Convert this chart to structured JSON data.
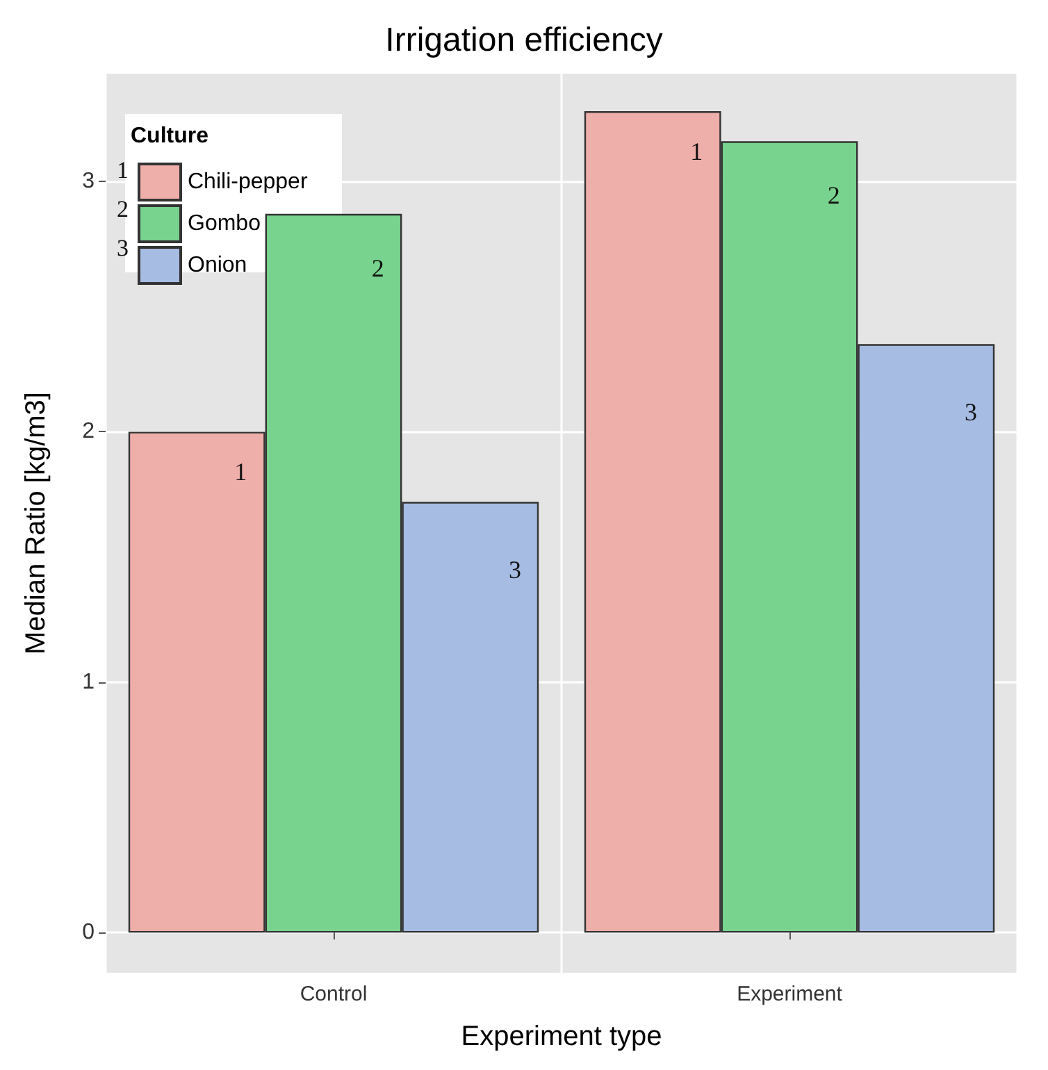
{
  "chart_data": {
    "type": "bar",
    "title": "Irrigation efficiency",
    "xlabel": "Experiment type",
    "ylabel": "Median Ratio [kg/m3]",
    "legend_title": "Culture",
    "categories": [
      "Control",
      "Experiment"
    ],
    "series": [
      {
        "name": "Chili-pepper",
        "color": "#eeaeaa",
        "values": [
          2.0,
          3.28
        ]
      },
      {
        "name": "Gombo",
        "color": "#77d38d",
        "values": [
          2.87,
          3.16
        ]
      },
      {
        "name": "Onion",
        "color": "#a6bce3",
        "values": [
          1.72,
          2.35
        ]
      }
    ],
    "annotations": [
      "1",
      "2",
      "3",
      "1",
      "2",
      "3",
      "1",
      "2",
      "3"
    ],
    "ylim": [
      -0.16,
      3.43
    ],
    "yticks": [
      0,
      1,
      2,
      3
    ],
    "grid": true,
    "legend": "top left"
  }
}
